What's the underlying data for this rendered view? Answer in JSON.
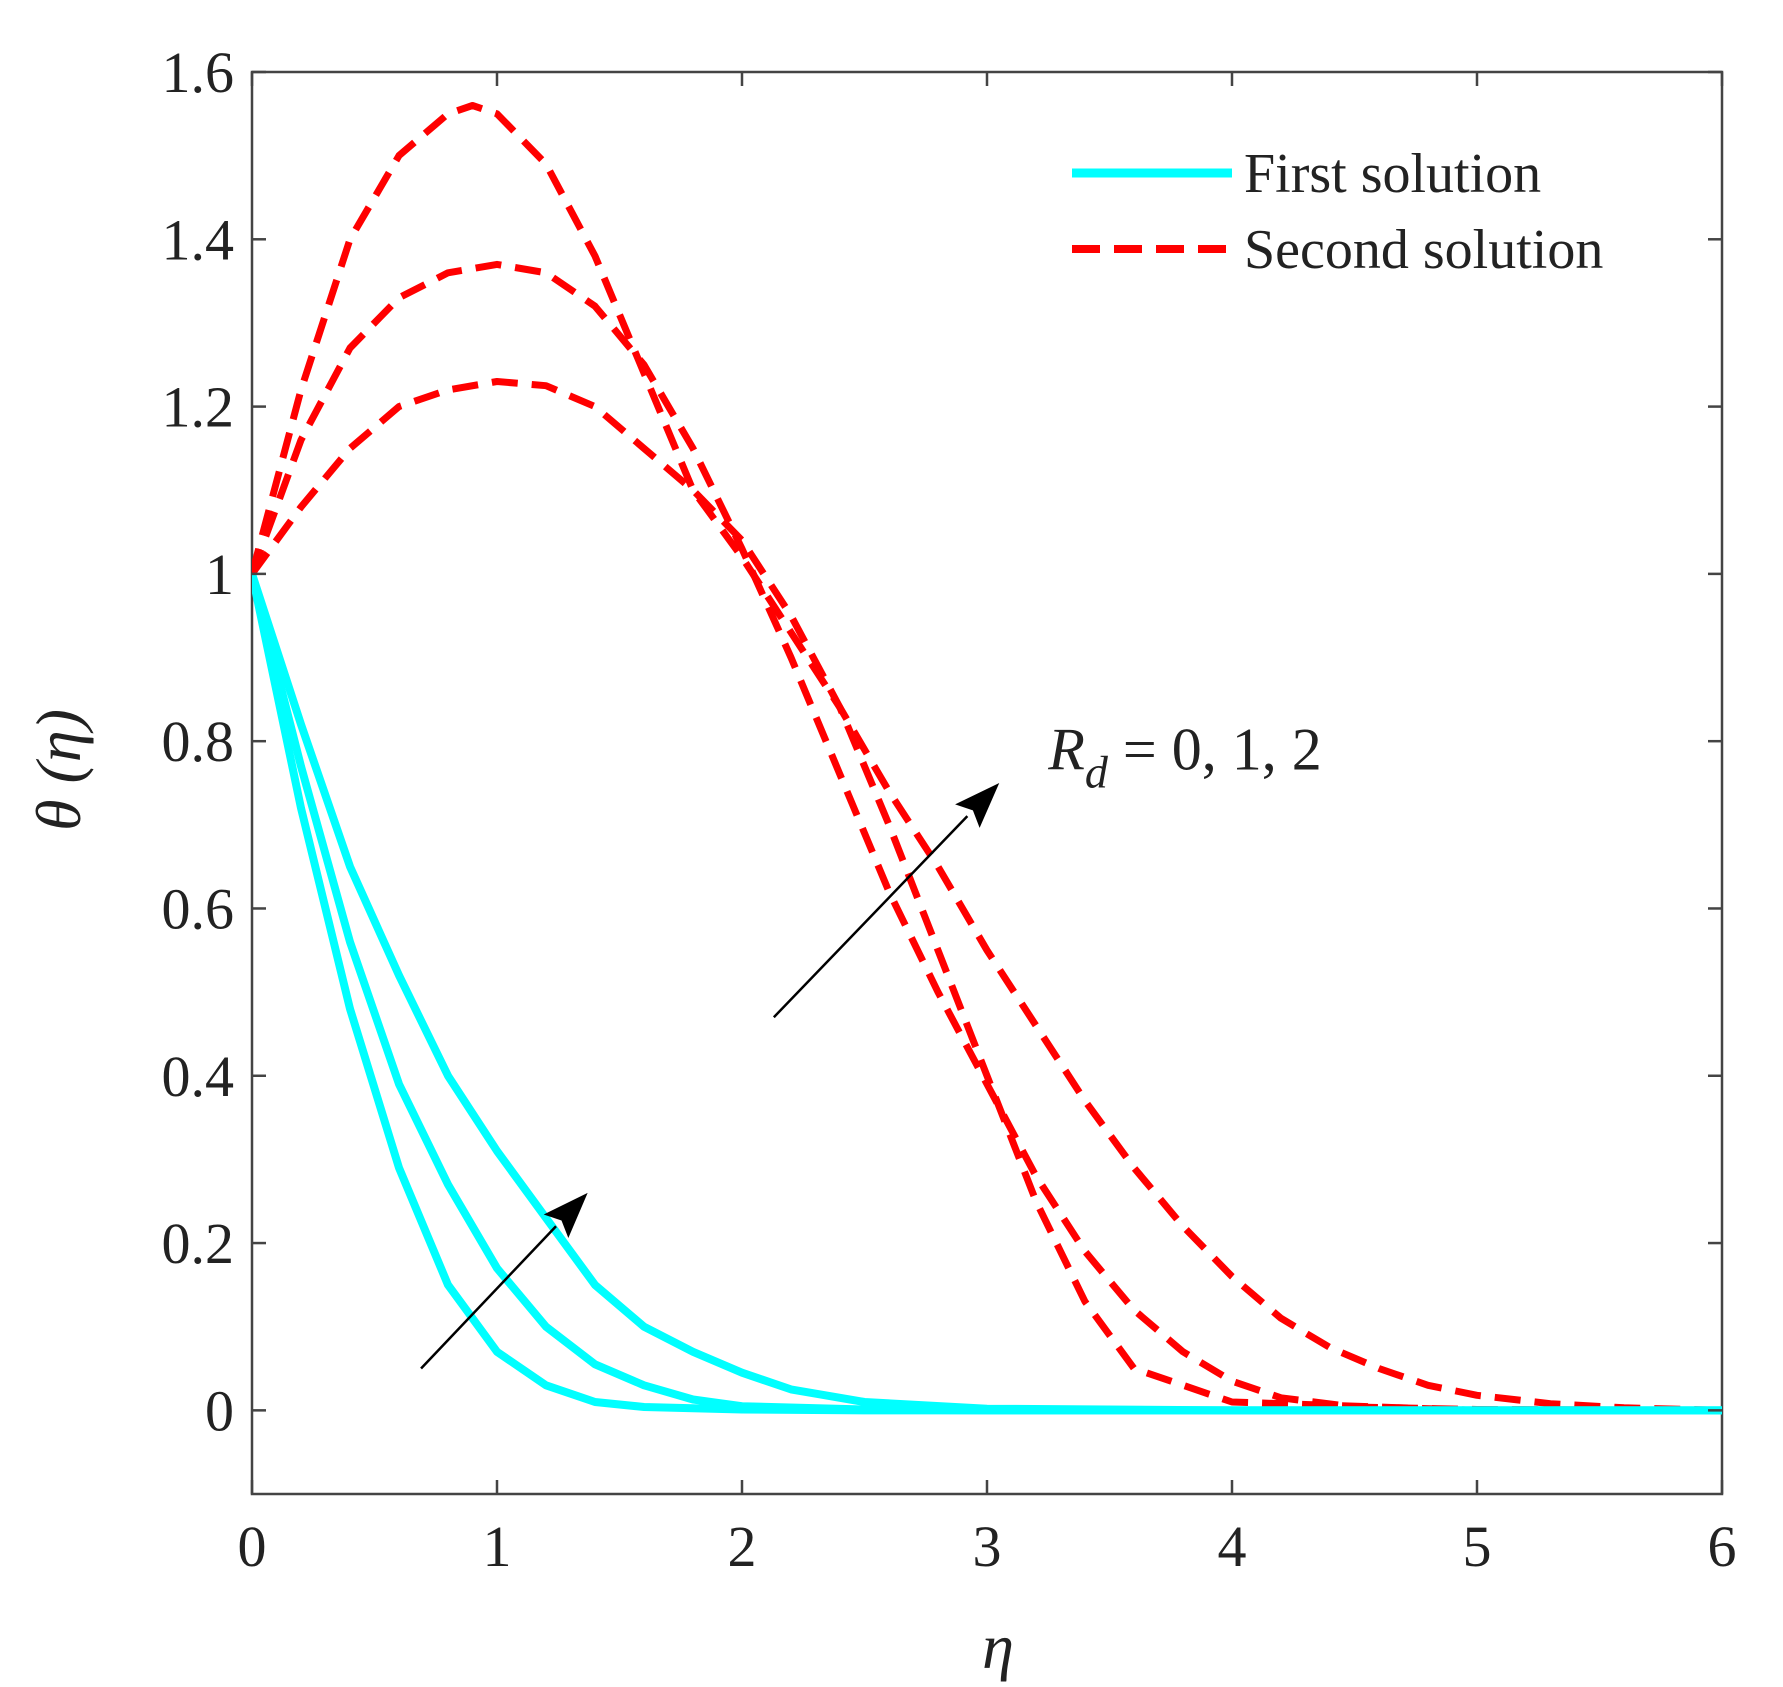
{
  "chart_data": {
    "type": "line",
    "title": "",
    "xlabel": "η",
    "ylabel": "θ (η)",
    "xlim": [
      0,
      6
    ],
    "ylim": [
      -0.1,
      1.6
    ],
    "xticks": [
      0,
      1,
      2,
      3,
      4,
      5,
      6
    ],
    "yticks": [
      0,
      0.2,
      0.4,
      0.6,
      0.8,
      1,
      1.2,
      1.4,
      1.6
    ],
    "xtick_labels": [
      "0",
      "1",
      "2",
      "3",
      "4",
      "5",
      "6"
    ],
    "ytick_labels": [
      "0",
      "0.2",
      "0.4",
      "0.6",
      "0.8",
      "1",
      "1.2",
      "1.4",
      "1.6"
    ],
    "grid": false,
    "legend": {
      "position": "top-right",
      "entries": [
        {
          "label": "First solution",
          "color": "#00ffff",
          "style": "solid"
        },
        {
          "label": "Second solution",
          "color": "#ff0000",
          "style": "dashed"
        }
      ]
    },
    "annotation": {
      "symbol": "R",
      "subscript": "d",
      "text": " = 0, 1, 2"
    },
    "series": [
      {
        "name": "First solution, R_d = 0",
        "color": "#00ffff",
        "style": "solid",
        "x": [
          0,
          0.2,
          0.4,
          0.6,
          0.8,
          1.0,
          1.2,
          1.4,
          1.6,
          2.0,
          2.5,
          3,
          4,
          5,
          6
        ],
        "y": [
          1,
          0.72,
          0.48,
          0.29,
          0.15,
          0.07,
          0.03,
          0.01,
          0.004,
          0.001,
          0,
          0,
          0,
          0,
          0
        ]
      },
      {
        "name": "First solution, R_d = 1",
        "color": "#00ffff",
        "style": "solid",
        "x": [
          0,
          0.2,
          0.4,
          0.6,
          0.8,
          1.0,
          1.2,
          1.4,
          1.6,
          1.8,
          2.0,
          2.5,
          3,
          4,
          5,
          6
        ],
        "y": [
          1,
          0.77,
          0.56,
          0.39,
          0.27,
          0.17,
          0.1,
          0.055,
          0.03,
          0.013,
          0.005,
          0.001,
          0,
          0,
          0,
          0
        ]
      },
      {
        "name": "First solution, R_d = 2",
        "color": "#00ffff",
        "style": "solid",
        "x": [
          0,
          0.2,
          0.4,
          0.6,
          0.8,
          1.0,
          1.2,
          1.4,
          1.6,
          1.8,
          2.0,
          2.2,
          2.5,
          3,
          4,
          5,
          6
        ],
        "y": [
          1,
          0.82,
          0.65,
          0.52,
          0.4,
          0.31,
          0.23,
          0.15,
          0.1,
          0.07,
          0.045,
          0.025,
          0.01,
          0.002,
          0,
          0,
          0
        ]
      },
      {
        "name": "Second solution, R_d = 0",
        "color": "#ff0000",
        "style": "dashed",
        "x": [
          0,
          0.2,
          0.4,
          0.6,
          0.8,
          1.0,
          1.2,
          1.4,
          1.6,
          1.8,
          2.0,
          2.2,
          2.4,
          2.6,
          2.8,
          3.0,
          3.2,
          3.4,
          3.6,
          4,
          5,
          6
        ],
        "y": [
          1,
          1.08,
          1.15,
          1.2,
          1.22,
          1.23,
          1.225,
          1.2,
          1.15,
          1.1,
          1.04,
          0.95,
          0.84,
          0.7,
          0.55,
          0.4,
          0.25,
          0.13,
          0.05,
          0.01,
          0,
          0
        ]
      },
      {
        "name": "Second solution, R_d = 1",
        "color": "#ff0000",
        "style": "dashed",
        "x": [
          0,
          0.2,
          0.4,
          0.6,
          0.8,
          1.0,
          1.2,
          1.4,
          1.6,
          1.8,
          2.0,
          2.2,
          2.4,
          2.6,
          2.8,
          3.0,
          3.2,
          3.4,
          3.6,
          3.8,
          4.0,
          4.2,
          4.5,
          5,
          6
        ],
        "y": [
          1,
          1.16,
          1.27,
          1.33,
          1.36,
          1.37,
          1.36,
          1.32,
          1.25,
          1.15,
          1.03,
          0.9,
          0.76,
          0.62,
          0.5,
          0.39,
          0.28,
          0.19,
          0.12,
          0.07,
          0.035,
          0.015,
          0.004,
          0.001,
          0
        ]
      },
      {
        "name": "Second solution, R_d = 2",
        "color": "#ff0000",
        "style": "dashed",
        "x": [
          0,
          0.2,
          0.4,
          0.6,
          0.8,
          0.9,
          1.0,
          1.2,
          1.4,
          1.6,
          1.8,
          2.0,
          2.2,
          2.4,
          2.6,
          2.8,
          3.0,
          3.2,
          3.4,
          3.6,
          3.8,
          4.0,
          4.2,
          4.4,
          4.6,
          4.8,
          5.0,
          5.3,
          5.6,
          6
        ],
        "y": [
          1,
          1.22,
          1.4,
          1.5,
          1.55,
          1.56,
          1.55,
          1.49,
          1.38,
          1.24,
          1.1,
          1.02,
          0.93,
          0.84,
          0.74,
          0.65,
          0.55,
          0.46,
          0.37,
          0.29,
          0.22,
          0.16,
          0.11,
          0.075,
          0.05,
          0.03,
          0.018,
          0.008,
          0.003,
          0
        ]
      }
    ],
    "arrows": [
      {
        "from": [
          0.69,
          0.05
        ],
        "to": [
          1.37,
          0.26
        ],
        "color": "#000000"
      },
      {
        "from": [
          2.13,
          0.47
        ],
        "to": [
          3.05,
          0.75
        ],
        "color": "#000000"
      }
    ],
    "annotation_anchor": [
      3.25,
      0.79
    ]
  }
}
